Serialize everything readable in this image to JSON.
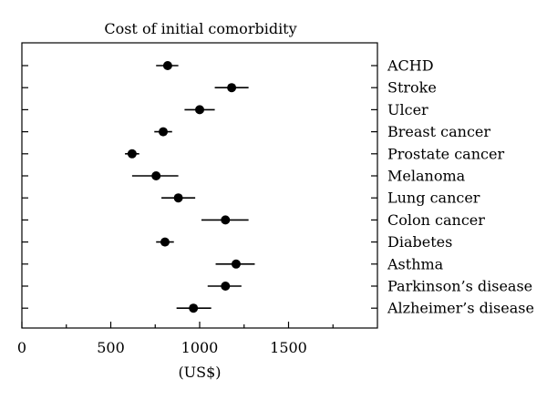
{
  "chart_data": {
    "type": "scatter",
    "title": "Cost of initial comorbidity",
    "xlabel": "(US$)",
    "xlim": [
      0,
      2000
    ],
    "xticks": [
      0,
      500,
      1000,
      1500
    ],
    "minor_xticks": [
      250,
      750,
      1250,
      1750
    ],
    "categories": [
      "ACHD",
      "Stroke",
      "Ulcer",
      "Breast cancer",
      "Prostate cancer",
      "Melanoma",
      "Lung cancer",
      "Colon cancer",
      "Diabetes",
      "Asthma",
      "Parkinson’s disease",
      "Alzheimer’s disease"
    ],
    "points": [
      {
        "category": "ACHD",
        "value": 820,
        "low": 755,
        "high": 880
      },
      {
        "category": "Stroke",
        "value": 1180,
        "low": 1085,
        "high": 1275
      },
      {
        "category": "Ulcer",
        "value": 1000,
        "low": 915,
        "high": 1085
      },
      {
        "category": "Breast cancer",
        "value": 795,
        "low": 745,
        "high": 845
      },
      {
        "category": "Prostate cancer",
        "value": 620,
        "low": 580,
        "high": 660
      },
      {
        "category": "Melanoma",
        "value": 755,
        "low": 620,
        "high": 880
      },
      {
        "category": "Lung cancer",
        "value": 880,
        "low": 785,
        "high": 975
      },
      {
        "category": "Colon cancer",
        "value": 1145,
        "low": 1010,
        "high": 1275
      },
      {
        "category": "Diabetes",
        "value": 805,
        "low": 755,
        "high": 855
      },
      {
        "category": "Asthma",
        "value": 1205,
        "low": 1090,
        "high": 1310
      },
      {
        "category": "Parkinson’s disease",
        "value": 1145,
        "low": 1045,
        "high": 1235
      },
      {
        "category": "Alzheimer’s disease",
        "value": 965,
        "low": 870,
        "high": 1065
      }
    ],
    "grid": false,
    "legend": "none"
  }
}
